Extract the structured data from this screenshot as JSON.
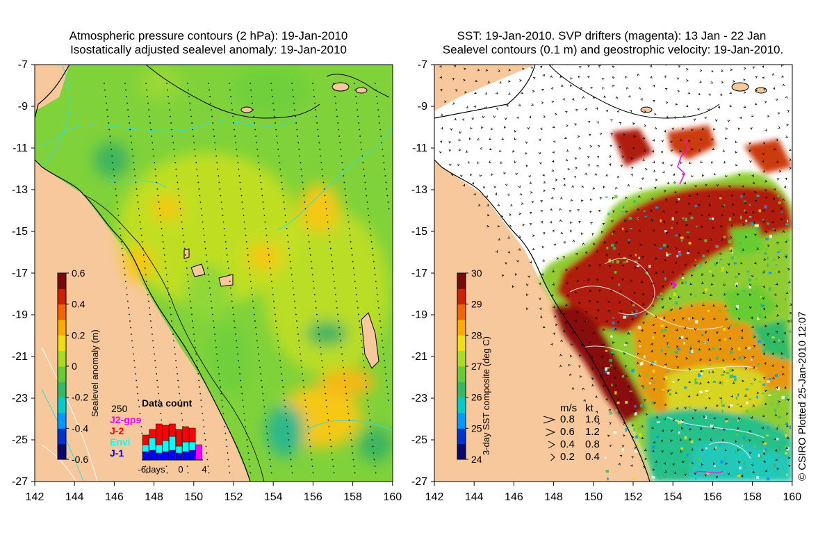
{
  "left_panel": {
    "title_line1": "Atmospheric pressure contours (2 hPa): 19-Jan-2010",
    "title_line2": "Isostatically adjusted sealevel anomaly: 19-Jan-2010",
    "colorbar": {
      "label": "Sealevel anomaly (m)",
      "ticks": [
        "0.6",
        "0.4",
        "0.2",
        "0",
        "-0.2",
        "-0.4",
        "-0.6"
      ],
      "colors": [
        "#0a0a6e",
        "#0033cc",
        "#0099ff",
        "#00cccc",
        "#33bb66",
        "#66cc33",
        "#aadd22",
        "#eedd11",
        "#ffaa00",
        "#ee6600",
        "#cc2200",
        "#7a0a0a"
      ]
    },
    "data_count": {
      "title": "Data count",
      "max_label": "250",
      "legend": [
        {
          "name": "J2-gps",
          "color": "#ff00ff"
        },
        {
          "name": "J-2",
          "color": "#ff0000"
        },
        {
          "name": "Envi",
          "color": "#00ffff"
        },
        {
          "name": "J-1",
          "color": "#0000ff"
        }
      ],
      "x_labels": [
        "-6days",
        "0",
        "4"
      ]
    }
  },
  "right_panel": {
    "title_line1": "SST: 19-Jan-2010. SVP drifters (magenta): 13 Jan - 22 Jan",
    "title_line2": "Sealevel contours (0.1 m) and geostrophic velocity: 19-Jan-2010.",
    "colorbar": {
      "label": "3-day SST composite (deg C)",
      "ticks": [
        "30",
        "29",
        "28",
        "27",
        "26",
        "25",
        "24"
      ],
      "colors": [
        "#0a0a6e",
        "#0033cc",
        "#0099ff",
        "#00cccc",
        "#33bb66",
        "#66cc33",
        "#aadd22",
        "#eedd11",
        "#ffaa00",
        "#ee6600",
        "#cc2200",
        "#7a0a0a"
      ]
    },
    "velocity_legend": {
      "header_ms": "m/s",
      "header_kt": "kt",
      "rows": [
        {
          "ms": "0.8",
          "kt": "1.6"
        },
        {
          "ms": "0.6",
          "kt": "1.2"
        },
        {
          "ms": "0.4",
          "kt": "0.8"
        },
        {
          "ms": "0.2",
          "kt": "0.4"
        }
      ]
    }
  },
  "axes": {
    "lat_labels": [
      "-7",
      "-9",
      "-11",
      "-13",
      "-15",
      "-17",
      "-19",
      "-21",
      "-23",
      "-25",
      "-27"
    ],
    "lon_labels": [
      "142",
      "144",
      "146",
      "148",
      "150",
      "152",
      "154",
      "156",
      "158",
      "160"
    ]
  },
  "colors": {
    "land": "#f7c89b",
    "ocean_green": "#66cc33",
    "white_cloud": "#ffffff"
  },
  "copyright": "© CSIRO Plotted 25-Jan-2010 12:07"
}
